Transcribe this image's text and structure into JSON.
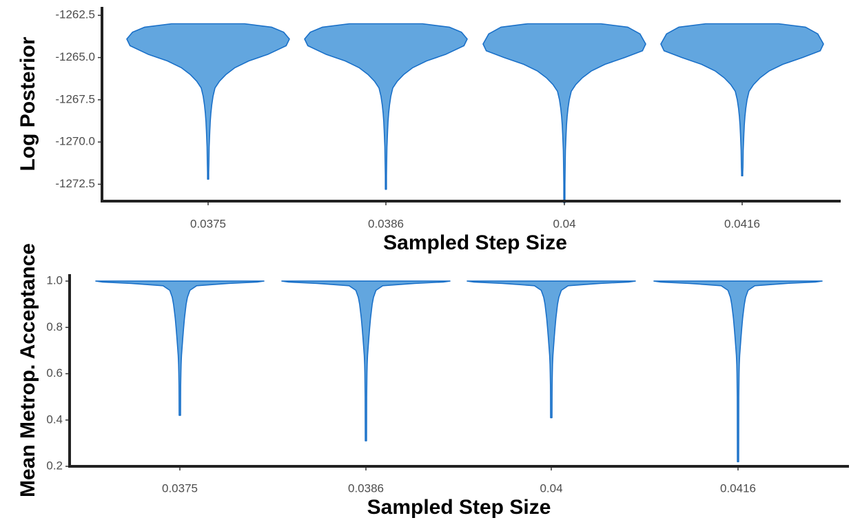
{
  "colors": {
    "violin_fill": "#62a6df",
    "violin_stroke": "#1a70c8"
  },
  "chart_data": [
    {
      "type": "violin",
      "xlabel": "Sampled Step Size",
      "ylabel": "Log Posterior",
      "categories": [
        "0.0375",
        "0.0386",
        "0.04",
        "0.0416"
      ],
      "ylim": [
        -1273.5,
        -1262.0
      ],
      "yticks": [
        -1262.5,
        -1265.0,
        -1267.5,
        -1270.0,
        -1272.5
      ],
      "ytick_labels": [
        "-1262.5",
        "-1265.0",
        "-1267.5",
        "-1270.0",
        "-1272.5"
      ],
      "grid": false,
      "distributions": [
        {
          "category": "0.0375",
          "min": -1272.2,
          "max": -1263.0,
          "mode": -1263.9,
          "profile": [
            [
              -1263.0,
              0.45
            ],
            [
              -1263.2,
              0.78
            ],
            [
              -1263.5,
              0.93
            ],
            [
              -1263.9,
              1.0
            ],
            [
              -1264.3,
              0.96
            ],
            [
              -1264.8,
              0.74
            ],
            [
              -1265.2,
              0.5
            ],
            [
              -1265.6,
              0.33
            ],
            [
              -1266.0,
              0.22
            ],
            [
              -1266.4,
              0.14
            ],
            [
              -1266.8,
              0.085
            ],
            [
              -1267.3,
              0.06
            ],
            [
              -1267.8,
              0.045
            ],
            [
              -1268.3,
              0.034
            ],
            [
              -1268.8,
              0.026
            ],
            [
              -1269.3,
              0.021
            ],
            [
              -1269.8,
              0.017
            ],
            [
              -1270.3,
              0.013
            ],
            [
              -1270.8,
              0.011
            ],
            [
              -1271.3,
              0.009
            ],
            [
              -1271.8,
              0.007
            ],
            [
              -1272.2,
              0.006
            ]
          ]
        },
        {
          "category": "0.0386",
          "min": -1272.8,
          "max": -1263.0,
          "mode": -1263.9,
          "profile": [
            [
              -1263.0,
              0.45
            ],
            [
              -1263.2,
              0.78
            ],
            [
              -1263.5,
              0.93
            ],
            [
              -1263.9,
              1.0
            ],
            [
              -1264.3,
              0.96
            ],
            [
              -1264.8,
              0.74
            ],
            [
              -1265.2,
              0.5
            ],
            [
              -1265.6,
              0.33
            ],
            [
              -1266.0,
              0.22
            ],
            [
              -1266.4,
              0.14
            ],
            [
              -1266.8,
              0.085
            ],
            [
              -1267.3,
              0.06
            ],
            [
              -1267.8,
              0.045
            ],
            [
              -1268.3,
              0.034
            ],
            [
              -1268.8,
              0.026
            ],
            [
              -1269.3,
              0.021
            ],
            [
              -1269.8,
              0.017
            ],
            [
              -1270.3,
              0.013
            ],
            [
              -1270.8,
              0.011
            ],
            [
              -1271.3,
              0.009
            ],
            [
              -1272.0,
              0.007
            ],
            [
              -1272.8,
              0.006
            ]
          ]
        },
        {
          "category": "0.04",
          "min": -1273.6,
          "max": -1263.0,
          "mode": -1264.2,
          "profile": [
            [
              -1263.0,
              0.45
            ],
            [
              -1263.2,
              0.78
            ],
            [
              -1263.6,
              0.93
            ],
            [
              -1264.2,
              1.0
            ],
            [
              -1264.6,
              0.96
            ],
            [
              -1265.0,
              0.74
            ],
            [
              -1265.4,
              0.5
            ],
            [
              -1265.8,
              0.33
            ],
            [
              -1266.2,
              0.22
            ],
            [
              -1266.6,
              0.14
            ],
            [
              -1267.0,
              0.085
            ],
            [
              -1267.5,
              0.06
            ],
            [
              -1268.0,
              0.045
            ],
            [
              -1268.5,
              0.034
            ],
            [
              -1269.0,
              0.026
            ],
            [
              -1269.5,
              0.021
            ],
            [
              -1270.0,
              0.017
            ],
            [
              -1270.5,
              0.013
            ],
            [
              -1271.0,
              0.011
            ],
            [
              -1271.6,
              0.009
            ],
            [
              -1272.5,
              0.007
            ],
            [
              -1273.6,
              0.006
            ]
          ]
        },
        {
          "category": "0.0416",
          "min": -1272.0,
          "max": -1263.0,
          "mode": -1264.2,
          "profile": [
            [
              -1263.0,
              0.45
            ],
            [
              -1263.2,
              0.78
            ],
            [
              -1263.6,
              0.93
            ],
            [
              -1264.2,
              1.0
            ],
            [
              -1264.6,
              0.96
            ],
            [
              -1265.0,
              0.74
            ],
            [
              -1265.4,
              0.5
            ],
            [
              -1265.8,
              0.33
            ],
            [
              -1266.2,
              0.22
            ],
            [
              -1266.6,
              0.14
            ],
            [
              -1267.0,
              0.085
            ],
            [
              -1267.5,
              0.06
            ],
            [
              -1268.0,
              0.045
            ],
            [
              -1268.5,
              0.034
            ],
            [
              -1269.0,
              0.026
            ],
            [
              -1269.5,
              0.021
            ],
            [
              -1270.0,
              0.017
            ],
            [
              -1270.5,
              0.013
            ],
            [
              -1271.0,
              0.011
            ],
            [
              -1271.5,
              0.009
            ],
            [
              -1271.8,
              0.007
            ],
            [
              -1272.0,
              0.006
            ]
          ]
        }
      ]
    },
    {
      "type": "violin",
      "xlabel": "Sampled Step Size",
      "ylabel": "Mean Metrop. Acceptance",
      "categories": [
        "0.0375",
        "0.0386",
        "0.04",
        "0.0416"
      ],
      "ylim": [
        0.2,
        1.03
      ],
      "yticks": [
        0.2,
        0.4,
        0.6,
        0.8,
        1.0
      ],
      "ytick_labels": [
        "0.2",
        "0.4",
        "0.6",
        "0.8",
        "1.0"
      ],
      "grid": false,
      "distributions": [
        {
          "category": "0.0375",
          "min": 0.42,
          "max": 1.0,
          "mode": 1.0,
          "profile": [
            [
              1.0,
              1.0
            ],
            [
              0.996,
              0.92
            ],
            [
              0.99,
              0.58
            ],
            [
              0.98,
              0.2
            ],
            [
              0.96,
              0.12
            ],
            [
              0.93,
              0.09
            ],
            [
              0.9,
              0.075
            ],
            [
              0.87,
              0.065
            ],
            [
              0.84,
              0.055
            ],
            [
              0.8,
              0.045
            ],
            [
              0.76,
              0.036
            ],
            [
              0.72,
              0.028
            ],
            [
              0.68,
              0.02
            ],
            [
              0.64,
              0.015
            ],
            [
              0.6,
              0.012
            ],
            [
              0.55,
              0.01
            ],
            [
              0.5,
              0.009
            ],
            [
              0.42,
              0.008
            ]
          ]
        },
        {
          "category": "0.0386",
          "min": 0.31,
          "max": 1.0,
          "mode": 1.0,
          "profile": [
            [
              1.0,
              1.0
            ],
            [
              0.996,
              0.92
            ],
            [
              0.99,
              0.58
            ],
            [
              0.98,
              0.2
            ],
            [
              0.96,
              0.12
            ],
            [
              0.93,
              0.09
            ],
            [
              0.9,
              0.075
            ],
            [
              0.87,
              0.065
            ],
            [
              0.84,
              0.055
            ],
            [
              0.8,
              0.045
            ],
            [
              0.76,
              0.036
            ],
            [
              0.72,
              0.028
            ],
            [
              0.68,
              0.02
            ],
            [
              0.64,
              0.015
            ],
            [
              0.6,
              0.012
            ],
            [
              0.5,
              0.009
            ],
            [
              0.4,
              0.008
            ],
            [
              0.31,
              0.007
            ]
          ]
        },
        {
          "category": "0.04",
          "min": 0.41,
          "max": 1.0,
          "mode": 1.0,
          "profile": [
            [
              1.0,
              1.0
            ],
            [
              0.996,
              0.92
            ],
            [
              0.99,
              0.58
            ],
            [
              0.98,
              0.2
            ],
            [
              0.96,
              0.12
            ],
            [
              0.93,
              0.09
            ],
            [
              0.9,
              0.075
            ],
            [
              0.87,
              0.065
            ],
            [
              0.84,
              0.055
            ],
            [
              0.8,
              0.045
            ],
            [
              0.76,
              0.036
            ],
            [
              0.72,
              0.028
            ],
            [
              0.68,
              0.02
            ],
            [
              0.64,
              0.015
            ],
            [
              0.6,
              0.012
            ],
            [
              0.55,
              0.01
            ],
            [
              0.5,
              0.009
            ],
            [
              0.41,
              0.008
            ]
          ]
        },
        {
          "category": "0.0416",
          "min": 0.22,
          "max": 1.0,
          "mode": 1.0,
          "profile": [
            [
              1.0,
              1.0
            ],
            [
              0.996,
              0.92
            ],
            [
              0.99,
              0.58
            ],
            [
              0.98,
              0.2
            ],
            [
              0.96,
              0.12
            ],
            [
              0.93,
              0.09
            ],
            [
              0.9,
              0.075
            ],
            [
              0.87,
              0.065
            ],
            [
              0.84,
              0.055
            ],
            [
              0.8,
              0.045
            ],
            [
              0.76,
              0.036
            ],
            [
              0.72,
              0.028
            ],
            [
              0.68,
              0.02
            ],
            [
              0.64,
              0.015
            ],
            [
              0.6,
              0.012
            ],
            [
              0.5,
              0.009
            ],
            [
              0.35,
              0.008
            ],
            [
              0.22,
              0.007
            ]
          ]
        }
      ]
    }
  ]
}
